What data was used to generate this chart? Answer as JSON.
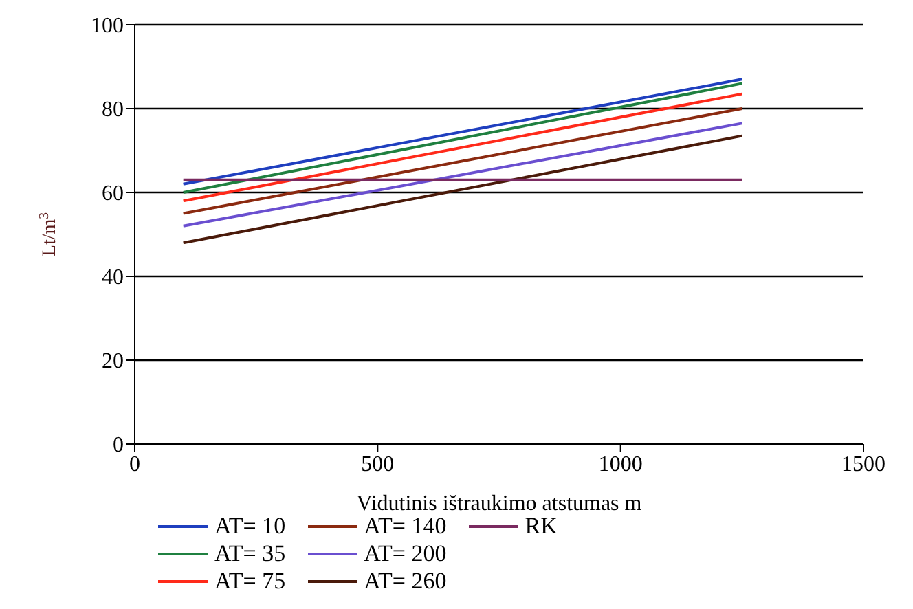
{
  "chart_data": {
    "type": "line",
    "xlabel": "Vidutinis ištraukimo atstumas m",
    "ylabel": "Lt/m$^{3}$",
    "x": [
      100,
      1250
    ],
    "series": [
      {
        "name": "AT= 10",
        "color": "#1f3fbf",
        "values": [
          62,
          87
        ]
      },
      {
        "name": "AT= 35",
        "color": "#1f8040",
        "values": [
          60,
          86
        ]
      },
      {
        "name": "AT= 75",
        "color": "#ff2a1a",
        "values": [
          58,
          83.5
        ]
      },
      {
        "name": "AT= 140",
        "color": "#8b2a10",
        "values": [
          55,
          80
        ]
      },
      {
        "name": "AT= 200",
        "color": "#6a4fd0",
        "values": [
          52,
          76.5
        ]
      },
      {
        "name": "AT= 260",
        "color": "#4a1a0a",
        "values": [
          48,
          73.5
        ]
      },
      {
        "name": "RK",
        "color": "#7a2a60",
        "values": [
          63,
          63
        ]
      }
    ],
    "xlim": [
      0,
      1500
    ],
    "xticks": [
      0,
      500,
      1000,
      1500
    ],
    "ylim": [
      0,
      100
    ],
    "yticks": [
      0,
      20,
      40,
      60,
      80,
      100
    ],
    "grid": "y",
    "legend": "bottom",
    "marker": "none",
    "line_style": "solid"
  }
}
